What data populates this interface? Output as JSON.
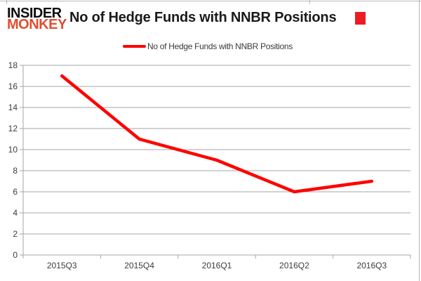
{
  "branding": {
    "logo_line1": "INSIDER",
    "logo_line2": "MONKEY",
    "logo_color_primary": "#0e0e0e",
    "logo_color_accent": "#e04e31"
  },
  "header": {
    "title": "No of Hedge Funds with NNBR Positions"
  },
  "legend": {
    "items": [
      {
        "label": "No of Hedge Funds with NNBR Positions",
        "color": "#ff0000"
      }
    ]
  },
  "annotation": {
    "red_box_color": "#ed1c24"
  },
  "chart_data": {
    "type": "line",
    "title": "No of Hedge Funds with NNBR Positions",
    "categories": [
      "2015Q3",
      "2015Q4",
      "2016Q1",
      "2016Q2",
      "2016Q3"
    ],
    "series": [
      {
        "name": "No of Hedge Funds with NNBR Positions",
        "color": "#ff0000",
        "values": [
          17,
          11,
          9,
          6,
          7
        ]
      }
    ],
    "xlabel": "",
    "ylabel": "",
    "ylim": [
      0,
      18
    ],
    "ytick_step": 2,
    "grid": true,
    "grid_color": "#a6a6a6",
    "tick_label_color": "#3c3c3c",
    "legend_position": "top-center"
  }
}
